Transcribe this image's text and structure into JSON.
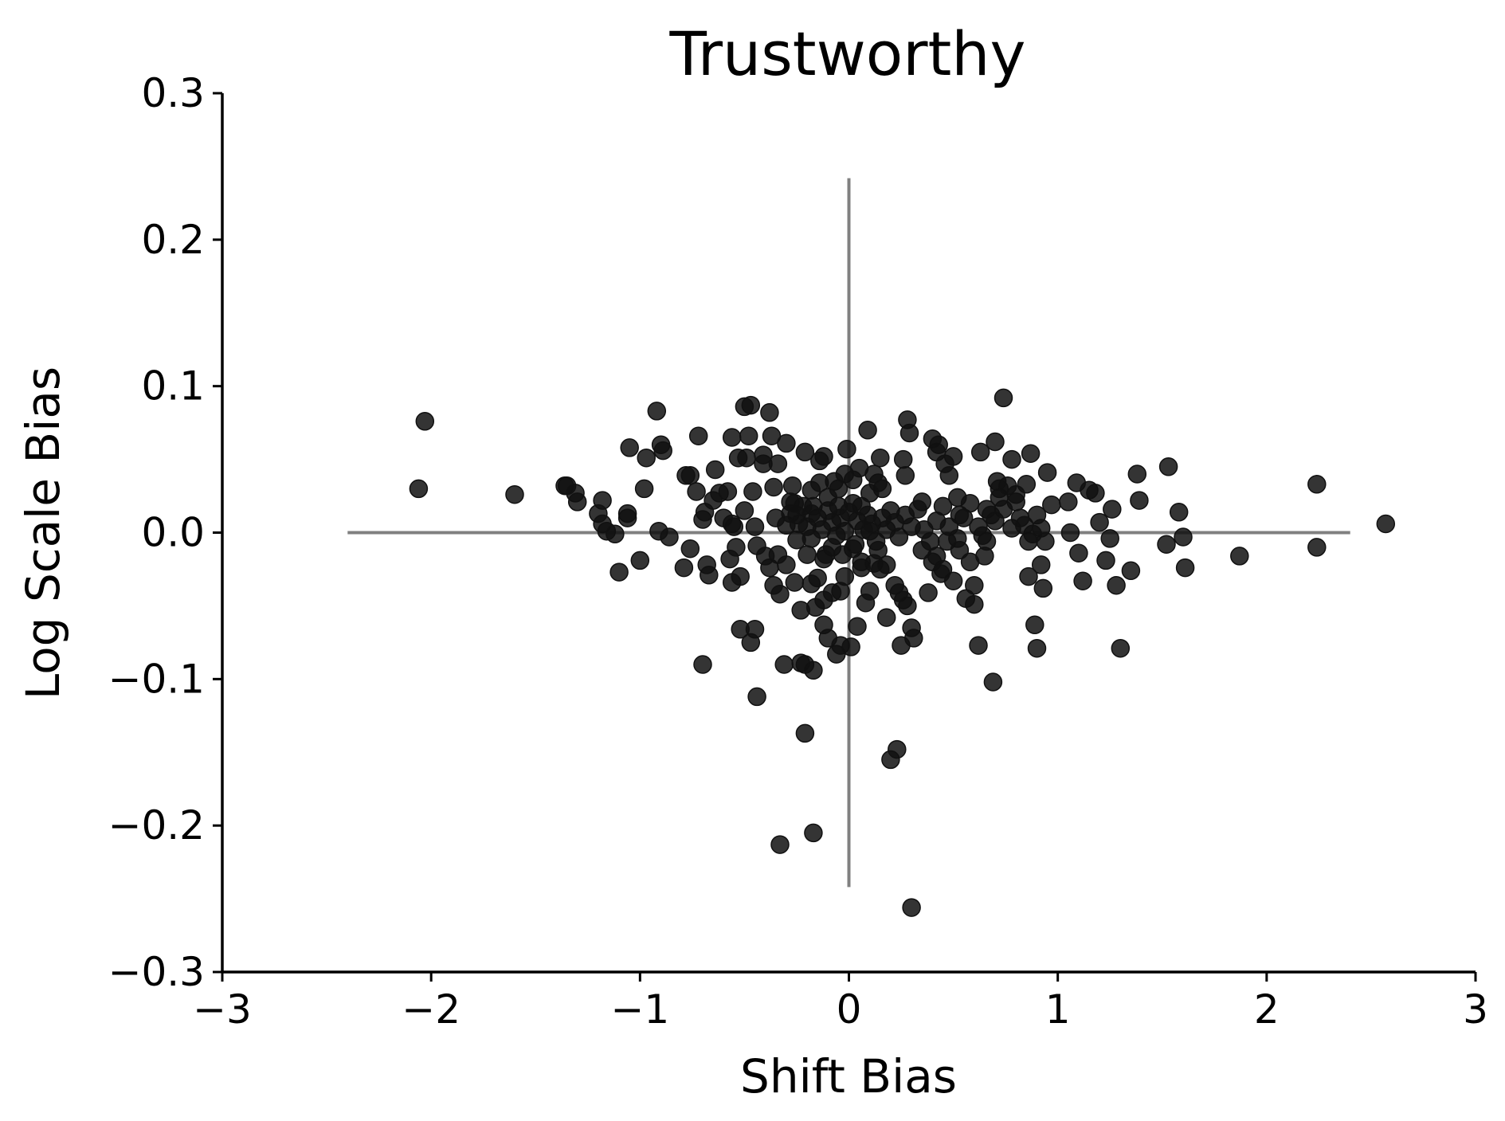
{
  "chart_data": {
    "type": "scatter",
    "title": "Trustworthy",
    "xlabel": "Shift Bias",
    "ylabel": "Log Scale Bias",
    "xlim": [
      -3,
      3
    ],
    "ylim": [
      -0.3,
      0.3
    ],
    "xticks": [
      -3,
      -2,
      -1,
      0,
      1,
      2,
      3
    ],
    "yticks": [
      -0.3,
      -0.2,
      -0.1,
      0.0,
      0.1,
      0.2,
      0.3
    ],
    "xtick_labels": [
      "−3",
      "−2",
      "−1",
      "0",
      "1",
      "2",
      "3"
    ],
    "ytick_labels": [
      "−0.3",
      "−0.2",
      "−0.1",
      "0.0",
      "0.1",
      "0.2",
      "0.3"
    ],
    "grid": false,
    "marker_color": "#111111",
    "reference_line_color": "#808080",
    "reference_lines": {
      "horizontal": {
        "y": 0,
        "x_from": -2.4,
        "x_to": 2.4
      },
      "vertical": {
        "x": 0,
        "y_from": -0.242,
        "y_to": 0.242
      }
    },
    "series": [
      {
        "points": [
          [
            -2.03,
            0.076
          ],
          [
            -2.06,
            0.03
          ],
          [
            -1.6,
            0.026
          ],
          [
            -1.36,
            0.032
          ],
          [
            -1.35,
            0.032
          ],
          [
            -1.31,
            0.027
          ],
          [
            -1.3,
            0.021
          ],
          [
            -1.18,
            0.022
          ],
          [
            -1.2,
            0.013
          ],
          [
            -1.18,
            0.006
          ],
          [
            -1.16,
            0.001
          ],
          [
            -1.12,
            -0.001
          ],
          [
            -1.1,
            -0.027
          ],
          [
            -1.06,
            0.013
          ],
          [
            -1.06,
            0.01
          ],
          [
            -1.05,
            0.058
          ],
          [
            -1.0,
            -0.019
          ],
          [
            -0.98,
            0.03
          ],
          [
            -0.97,
            0.051
          ],
          [
            -0.92,
            0.083
          ],
          [
            -0.9,
            0.06
          ],
          [
            -0.89,
            0.056
          ],
          [
            -0.91,
            0.001
          ],
          [
            -0.86,
            -0.003
          ],
          [
            -0.78,
            0.039
          ],
          [
            -0.76,
            0.039
          ],
          [
            -0.79,
            -0.024
          ],
          [
            -0.76,
            -0.011
          ],
          [
            -0.72,
            0.066
          ],
          [
            -0.73,
            0.028
          ],
          [
            -0.7,
            0.009
          ],
          [
            -0.69,
            0.014
          ],
          [
            -0.68,
            -0.022
          ],
          [
            -0.67,
            -0.029
          ],
          [
            -0.64,
            0.043
          ],
          [
            -0.62,
            0.027
          ],
          [
            -0.58,
            0.028
          ],
          [
            -0.56,
            0.065
          ],
          [
            -0.56,
            0.006
          ],
          [
            -0.57,
            -0.018
          ],
          [
            -0.56,
            -0.034
          ],
          [
            -0.53,
            0.051
          ],
          [
            -0.52,
            -0.03
          ],
          [
            -0.54,
            -0.01
          ],
          [
            -0.5,
            0.086
          ],
          [
            -0.47,
            0.087
          ],
          [
            -0.49,
            0.051
          ],
          [
            -0.48,
            0.066
          ],
          [
            -0.46,
            0.028
          ],
          [
            -0.44,
            -0.009
          ],
          [
            -0.41,
            0.053
          ],
          [
            -0.41,
            0.047
          ],
          [
            -0.38,
            0.082
          ],
          [
            -0.37,
            0.066
          ],
          [
            -0.36,
            0.031
          ],
          [
            -0.34,
            0.047
          ],
          [
            -0.38,
            -0.024
          ],
          [
            -0.36,
            -0.036
          ],
          [
            -0.33,
            -0.042
          ],
          [
            -0.3,
            0.061
          ],
          [
            -0.28,
            0.021
          ],
          [
            -0.27,
            0.032
          ],
          [
            -0.25,
            0.012
          ],
          [
            -0.26,
            -0.034
          ],
          [
            -0.23,
            -0.053
          ],
          [
            -0.21,
            0.055
          ],
          [
            -0.18,
            0.029
          ],
          [
            -0.17,
            0.018
          ],
          [
            -0.18,
            -0.035
          ],
          [
            -0.16,
            -0.051
          ],
          [
            -0.14,
            0.049
          ],
          [
            -0.12,
            0.052
          ],
          [
            -0.11,
            -0.015
          ],
          [
            -0.12,
            -0.063
          ],
          [
            -0.1,
            -0.072
          ],
          [
            -0.07,
            0.035
          ],
          [
            -0.05,
            0.018
          ],
          [
            -0.04,
            -0.04
          ],
          [
            -0.06,
            -0.083
          ],
          [
            -0.04,
            -0.077
          ],
          [
            -0.01,
            0.057
          ],
          [
            0.0,
            0.014
          ],
          [
            0.02,
            -0.011
          ],
          [
            0.01,
            -0.078
          ],
          [
            0.04,
            -0.064
          ],
          [
            0.06,
            0.018
          ],
          [
            0.08,
            -0.048
          ],
          [
            0.09,
            0.07
          ],
          [
            0.1,
            0.001
          ],
          [
            0.12,
            -0.021
          ],
          [
            0.14,
            0.034
          ],
          [
            0.15,
            0.051
          ],
          [
            0.16,
            0.03
          ],
          [
            0.18,
            -0.058
          ],
          [
            0.2,
            -0.155
          ],
          [
            0.23,
            -0.148
          ],
          [
            0.25,
            -0.077
          ],
          [
            0.26,
            0.05
          ],
          [
            0.27,
            0.039
          ],
          [
            0.28,
            0.077
          ],
          [
            0.29,
            0.068
          ],
          [
            0.3,
            -0.065
          ],
          [
            0.31,
            -0.072
          ],
          [
            0.3,
            -0.256
          ],
          [
            0.35,
            0.021
          ],
          [
            0.4,
            0.064
          ],
          [
            0.42,
            0.055
          ],
          [
            0.43,
            0.06
          ],
          [
            0.46,
            0.047
          ],
          [
            0.48,
            0.039
          ],
          [
            0.5,
            0.052
          ],
          [
            0.52,
            0.024
          ],
          [
            0.53,
            0.012
          ],
          [
            0.56,
            -0.045
          ],
          [
            0.6,
            -0.036
          ],
          [
            0.62,
            -0.077
          ],
          [
            0.63,
            0.055
          ],
          [
            0.65,
            -0.016
          ],
          [
            0.66,
            0.016
          ],
          [
            0.7,
            0.062
          ],
          [
            0.71,
            0.035
          ],
          [
            0.72,
            0.03
          ],
          [
            0.74,
            0.092
          ],
          [
            0.78,
            0.05
          ],
          [
            0.8,
            0.021
          ],
          [
            0.85,
            0.033
          ],
          [
            0.87,
            0.054
          ],
          [
            0.88,
            -0.001
          ],
          [
            0.9,
            -0.079
          ],
          [
            0.92,
            0.003
          ],
          [
            0.93,
            -0.038
          ],
          [
            0.95,
            0.041
          ],
          [
            0.97,
            0.019
          ],
          [
            1.05,
            0.021
          ],
          [
            1.06,
            0.0
          ],
          [
            1.09,
            0.034
          ],
          [
            1.1,
            -0.014
          ],
          [
            1.12,
            -0.033
          ],
          [
            1.15,
            0.029
          ],
          [
            1.18,
            0.027
          ],
          [
            1.2,
            0.007
          ],
          [
            1.23,
            -0.019
          ],
          [
            1.25,
            -0.004
          ],
          [
            1.26,
            0.016
          ],
          [
            1.28,
            -0.036
          ],
          [
            1.3,
            -0.079
          ],
          [
            1.35,
            -0.026
          ],
          [
            1.38,
            0.04
          ],
          [
            1.39,
            0.022
          ],
          [
            1.53,
            0.045
          ],
          [
            1.52,
            -0.008
          ],
          [
            1.58,
            0.014
          ],
          [
            1.6,
            -0.003
          ],
          [
            1.61,
            -0.024
          ],
          [
            1.87,
            -0.016
          ],
          [
            2.24,
            0.033
          ],
          [
            2.24,
            -0.01
          ],
          [
            2.57,
            0.006
          ],
          [
            -0.7,
            -0.09
          ],
          [
            -0.52,
            -0.066
          ],
          [
            -0.47,
            -0.075
          ],
          [
            -0.45,
            -0.066
          ],
          [
            -0.44,
            -0.112
          ],
          [
            -0.31,
            -0.09
          ],
          [
            -0.23,
            -0.089
          ],
          [
            -0.21,
            -0.09
          ],
          [
            -0.17,
            -0.094
          ],
          [
            -0.21,
            -0.137
          ],
          [
            -0.33,
            -0.213
          ],
          [
            -0.17,
            -0.205
          ],
          [
            0.69,
            -0.102
          ],
          [
            0.89,
            -0.063
          ],
          [
            0.86,
            -0.03
          ],
          [
            0.92,
            -0.022
          ],
          [
            0.6,
            -0.049
          ],
          [
            0.45,
            -0.025
          ],
          [
            0.42,
            -0.016
          ],
          [
            0.38,
            -0.041
          ],
          [
            0.5,
            -0.033
          ],
          [
            0.22,
            -0.036
          ],
          [
            0.24,
            -0.041
          ],
          [
            0.26,
            -0.046
          ],
          [
            0.28,
            -0.05
          ],
          [
            0.15,
            -0.025
          ],
          [
            0.1,
            -0.04
          ],
          [
            0.06,
            -0.024
          ],
          [
            -0.02,
            -0.03
          ],
          [
            -0.08,
            -0.041
          ],
          [
            -0.12,
            -0.046
          ],
          [
            -0.15,
            -0.031
          ],
          [
            -0.2,
            -0.015
          ],
          [
            -0.25,
            -0.005
          ],
          [
            -0.3,
            -0.022
          ],
          [
            -0.34,
            -0.015
          ],
          [
            -0.4,
            -0.016
          ],
          [
            -0.45,
            0.004
          ],
          [
            -0.5,
            0.015
          ],
          [
            -0.55,
            0.004
          ],
          [
            -0.6,
            0.01
          ],
          [
            -0.65,
            0.022
          ],
          [
            -0.35,
            0.01
          ],
          [
            -0.3,
            0.005
          ],
          [
            -0.28,
            0.013
          ],
          [
            -0.24,
            0.006
          ],
          [
            -0.22,
            0.018
          ],
          [
            -0.2,
            0.004
          ],
          [
            -0.18,
            -0.004
          ],
          [
            -0.15,
            0.01
          ],
          [
            -0.13,
            0.002
          ],
          [
            -0.1,
            0.015
          ],
          [
            -0.08,
            0.007
          ],
          [
            -0.06,
            -0.002
          ],
          [
            -0.04,
            0.01
          ],
          [
            -0.02,
            0.001
          ],
          [
            0.02,
            0.02
          ],
          [
            0.04,
            0.008
          ],
          [
            0.07,
            0.002
          ],
          [
            0.09,
            0.012
          ],
          [
            0.11,
            0.006
          ],
          [
            0.13,
            -0.006
          ],
          [
            0.16,
            0.01
          ],
          [
            0.18,
            0.002
          ],
          [
            0.2,
            0.015
          ],
          [
            0.22,
            0.007
          ],
          [
            0.24,
            -0.003
          ],
          [
            0.27,
            0.012
          ],
          [
            0.3,
            0.004
          ],
          [
            0.33,
            0.016
          ],
          [
            0.36,
            0.002
          ],
          [
            0.39,
            -0.006
          ],
          [
            0.42,
            0.008
          ],
          [
            0.45,
            0.018
          ],
          [
            0.48,
            0.004
          ],
          [
            0.52,
            -0.004
          ],
          [
            0.55,
            0.01
          ],
          [
            0.58,
            0.02
          ],
          [
            0.62,
            0.004
          ],
          [
            0.66,
            -0.006
          ],
          [
            0.7,
            0.008
          ],
          [
            0.74,
            0.016
          ],
          [
            0.78,
            0.003
          ],
          [
            0.82,
            0.01
          ],
          [
            0.86,
            -0.006
          ],
          [
            -0.05,
            0.03
          ],
          [
            -0.02,
            0.04
          ],
          [
            0.02,
            0.036
          ],
          [
            0.05,
            0.044
          ],
          [
            -0.1,
            0.024
          ],
          [
            -0.14,
            0.034
          ],
          [
            0.1,
            0.027
          ],
          [
            0.12,
            0.04
          ],
          [
            -0.08,
            -0.01
          ],
          [
            -0.03,
            -0.015
          ],
          [
            0.03,
            -0.008
          ],
          [
            0.06,
            -0.02
          ],
          [
            -0.12,
            -0.018
          ],
          [
            0.14,
            -0.012
          ],
          [
            0.18,
            -0.022
          ],
          [
            -0.18,
            0.013
          ],
          [
            -0.26,
            0.02
          ],
          [
            0.35,
            -0.012
          ],
          [
            0.4,
            -0.02
          ],
          [
            0.44,
            -0.028
          ],
          [
            0.47,
            -0.006
          ],
          [
            0.53,
            -0.012
          ],
          [
            0.58,
            -0.02
          ],
          [
            0.64,
            -0.002
          ],
          [
            0.68,
            0.012
          ],
          [
            0.72,
            0.024
          ],
          [
            0.76,
            0.032
          ],
          [
            0.8,
            0.026
          ],
          [
            0.84,
            0.005
          ],
          [
            0.9,
            0.012
          ],
          [
            0.94,
            -0.006
          ]
        ]
      }
    ]
  }
}
